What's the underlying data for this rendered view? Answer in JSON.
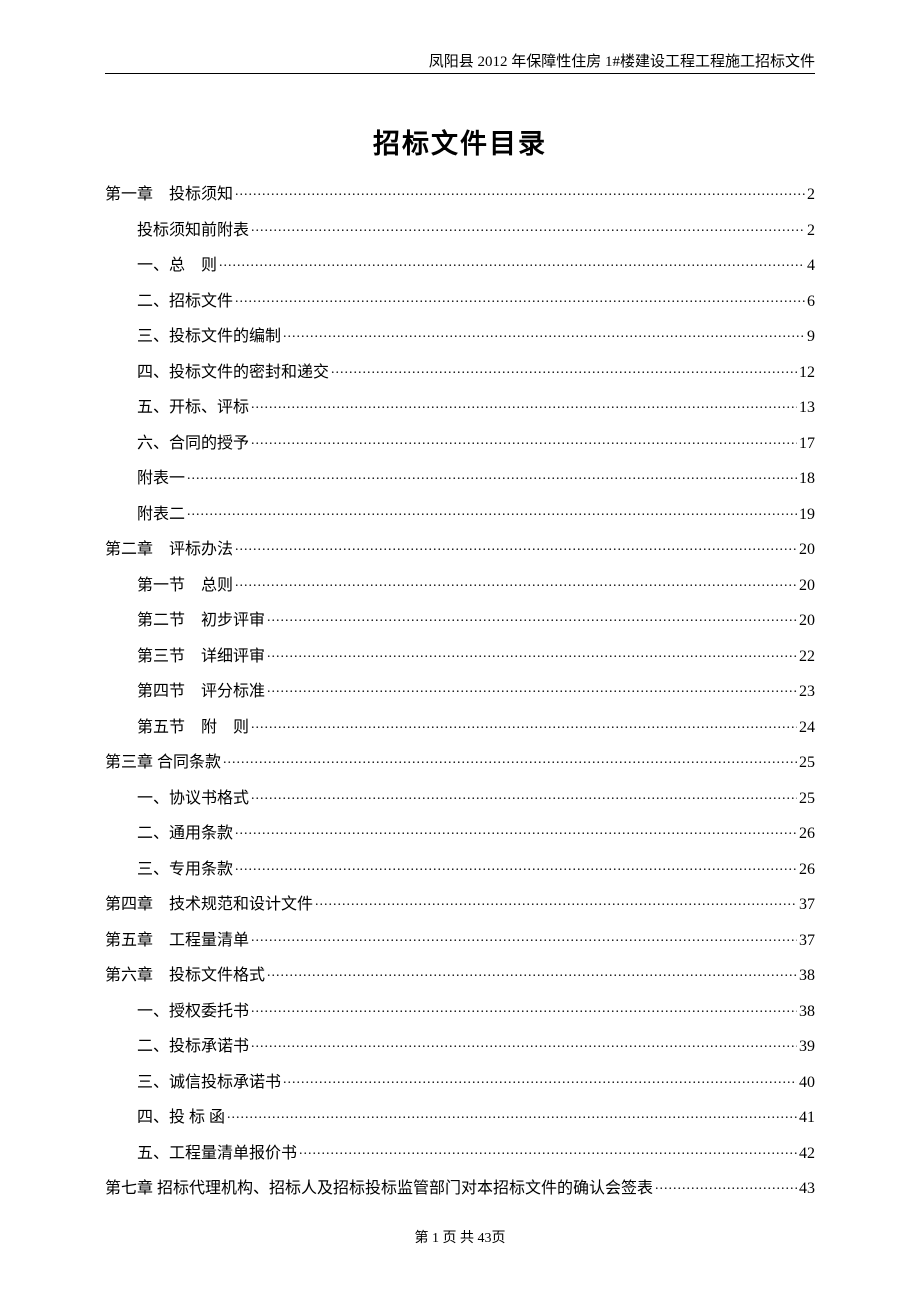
{
  "header": "凤阳县 2012 年保障性住房 1#楼建设工程工程施工招标文件",
  "title": "招标文件目录",
  "footer": "第 1 页 共 43页",
  "toc": [
    {
      "label": "第一章　投标须知",
      "page": "2",
      "indent": 0
    },
    {
      "label": "投标须知前附表",
      "page": "2",
      "indent": 1
    },
    {
      "label": "一、总　则",
      "page": "4",
      "indent": 1
    },
    {
      "label": "二、招标文件",
      "page": "6",
      "indent": 1
    },
    {
      "label": "三、投标文件的编制",
      "page": "9",
      "indent": 1
    },
    {
      "label": "四、投标文件的密封和递交",
      "page": "12",
      "indent": 1
    },
    {
      "label": "五、开标、评标",
      "page": "13",
      "indent": 1
    },
    {
      "label": "六、合同的授予",
      "page": "17",
      "indent": 1
    },
    {
      "label": "附表一",
      "page": "18",
      "indent": 1
    },
    {
      "label": "附表二",
      "page": "19",
      "indent": 1
    },
    {
      "label": "第二章　评标办法",
      "page": "20",
      "indent": 0
    },
    {
      "label": "第一节　总则",
      "page": "20",
      "indent": 1
    },
    {
      "label": "第二节　初步评审",
      "page": "20",
      "indent": 1
    },
    {
      "label": "第三节　详细评审",
      "page": "22",
      "indent": 1
    },
    {
      "label": "第四节　评分标准",
      "page": "23",
      "indent": 1
    },
    {
      "label": "第五节　附　则",
      "page": "24",
      "indent": 1
    },
    {
      "label": "第三章 合同条款",
      "page": "25",
      "indent": 0
    },
    {
      "label": "一、协议书格式",
      "page": "25",
      "indent": 1
    },
    {
      "label": "二、通用条款",
      "page": "26",
      "indent": 1
    },
    {
      "label": "三、专用条款",
      "page": "26",
      "indent": 1
    },
    {
      "label": "第四章　技术规范和设计文件",
      "page": "37",
      "indent": 0
    },
    {
      "label": "第五章　工程量清单",
      "page": "37",
      "indent": 0
    },
    {
      "label": "第六章　投标文件格式",
      "page": "38",
      "indent": 0
    },
    {
      "label": "一、授权委托书",
      "page": "38",
      "indent": 1
    },
    {
      "label": "二、投标承诺书",
      "page": "39",
      "indent": 1
    },
    {
      "label": "三、诚信投标承诺书",
      "page": "40",
      "indent": 1
    },
    {
      "label": "四、投 标 函",
      "page": "41",
      "indent": 1
    },
    {
      "label": "五、工程量清单报价书",
      "page": "42",
      "indent": 1
    },
    {
      "label": "第七章 招标代理机构、招标人及招标投标监管部门对本招标文件的确认会签表",
      "page": "43",
      "indent": 0
    }
  ]
}
